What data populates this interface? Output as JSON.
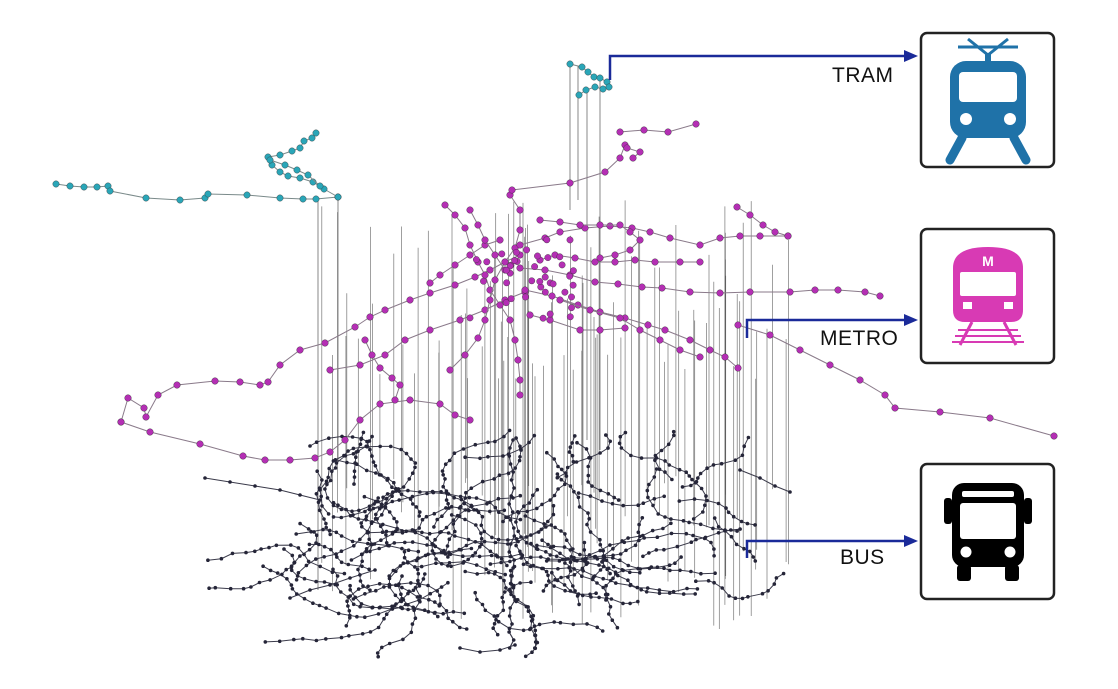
{
  "layers": [
    {
      "id": "tram",
      "label": "TRAM",
      "icon": "tram-icon",
      "color": "#2aa6b8",
      "icon_color": "#1f72a8"
    },
    {
      "id": "metro",
      "label": "METRO",
      "icon": "metro-icon",
      "color": "#b42fb4",
      "icon_color": "#d83ab4",
      "icon_badge": "M"
    },
    {
      "id": "bus",
      "label": "BUS",
      "icon": "bus-icon",
      "color": "#252538",
      "icon_color": "#000000"
    }
  ],
  "colors": {
    "arrow": "#1a2a99",
    "inter_layer_line": "#555555",
    "edge": "#777777",
    "box_border": "#222222"
  }
}
